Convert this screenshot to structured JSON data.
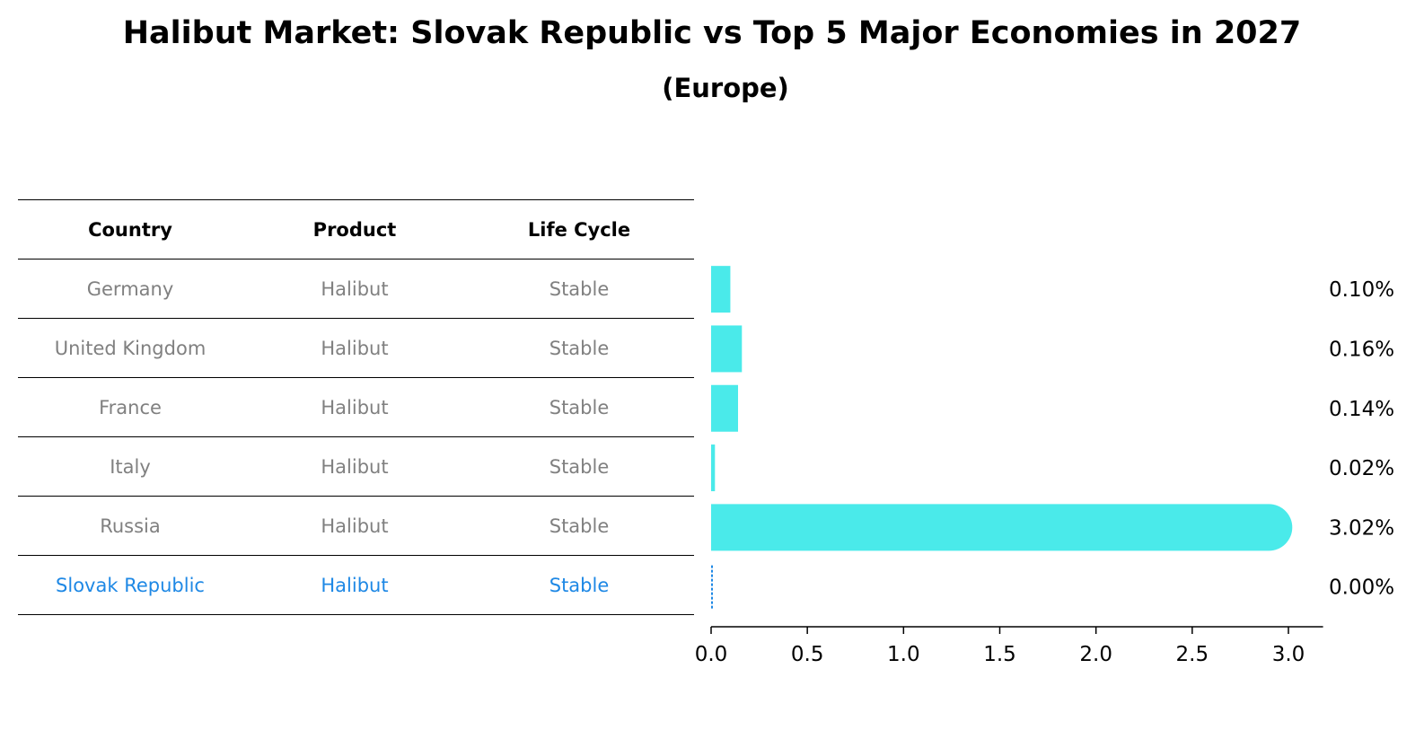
{
  "title": "Halibut Market: Slovak Republic vs Top 5 Major Economies in 2027",
  "subtitle": "(Europe)",
  "table": {
    "headers": [
      "Country",
      "Product",
      "Life Cycle"
    ],
    "rows": [
      {
        "country": "Germany",
        "product": "Halibut",
        "life_cycle": "Stable"
      },
      {
        "country": "United Kingdom",
        "product": "Halibut",
        "life_cycle": "Stable"
      },
      {
        "country": "France",
        "product": "Halibut",
        "life_cycle": "Stable"
      },
      {
        "country": "Italy",
        "product": "Halibut",
        "life_cycle": "Stable"
      },
      {
        "country": "Russia",
        "product": "Halibut",
        "life_cycle": "Stable"
      },
      {
        "country": "Slovak Republic",
        "product": "Halibut",
        "life_cycle": "Stable"
      }
    ],
    "highlight_color": "#1e88e5",
    "text_color": "#808080"
  },
  "chart_data": {
    "type": "bar",
    "orientation": "horizontal",
    "categories": [
      "Germany",
      "United Kingdom",
      "France",
      "Italy",
      "Russia",
      "Slovak Republic"
    ],
    "values": [
      0.1,
      0.16,
      0.14,
      0.02,
      3.02,
      0.0
    ],
    "value_labels": [
      "0.10%",
      "0.16%",
      "0.14%",
      "0.02%",
      "3.02%",
      "0.00%"
    ],
    "xlim": [
      0,
      3.18
    ],
    "xticks": [
      0.0,
      0.5,
      1.0,
      1.5,
      2.0,
      2.5,
      3.0
    ],
    "xtick_labels": [
      "0.0",
      "0.5",
      "1.0",
      "1.5",
      "2.0",
      "2.5",
      "3.0"
    ],
    "bar_color": "#4aeaea",
    "zero_marker_color": "#1e88e5",
    "unit": "%"
  }
}
